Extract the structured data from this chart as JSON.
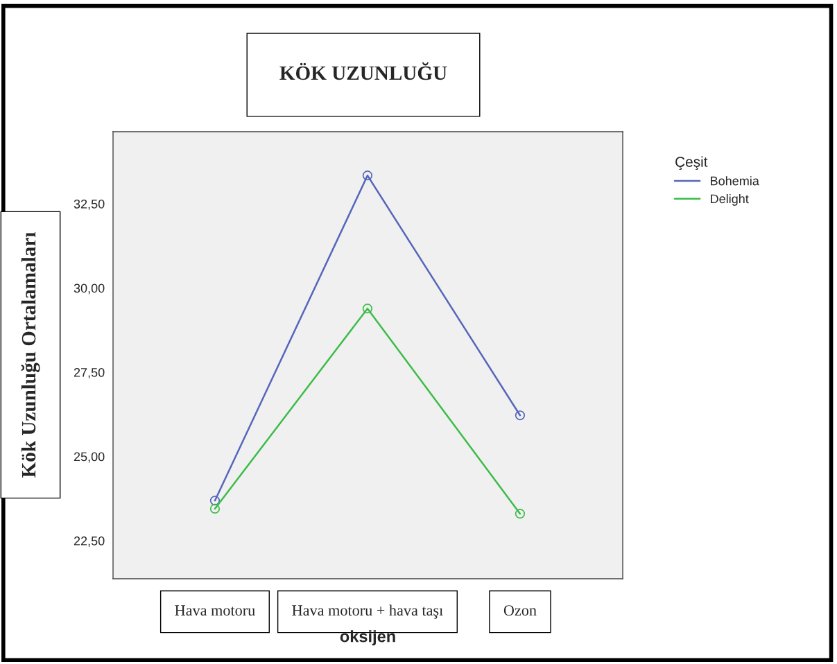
{
  "chart_data": {
    "type": "line",
    "title": "KÖK UZUNLUĞU",
    "xlabel": "oksijen",
    "ylabel": "Kök Uzunluğu Ortalamaları",
    "legend_title": "Çeşit",
    "categories": [
      "Hava motoru",
      "Hava motoru + hava taşı",
      "Ozon"
    ],
    "series": [
      {
        "name": "Bohemia",
        "color": "#5566bb",
        "values": [
          23.69,
          33.34,
          26.22
        ]
      },
      {
        "name": "Delight",
        "color": "#3cbc48",
        "values": [
          23.45,
          29.39,
          23.3
        ]
      }
    ],
    "ylim": [
      21.37,
      34.64
    ],
    "yticks": [
      {
        "value": 22.5,
        "label": "22,50"
      },
      {
        "value": 25,
        "label": "25,00"
      },
      {
        "value": 27.5,
        "label": "27,50"
      },
      {
        "value": 30,
        "label": "30,00"
      },
      {
        "value": 32.5,
        "label": "32,50"
      }
    ],
    "marker": "circle",
    "grid": false,
    "legend": "right"
  }
}
